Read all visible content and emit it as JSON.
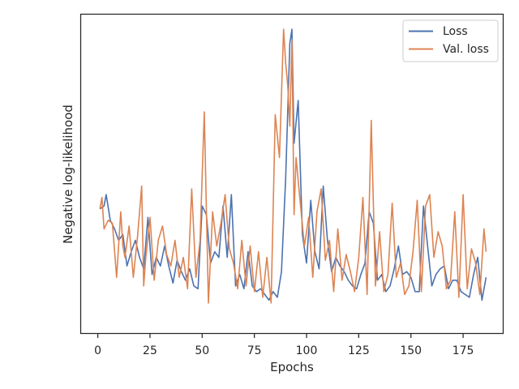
{
  "chart_data": {
    "type": "line",
    "xlabel": "Epochs",
    "ylabel": "Negative log-likelihood",
    "xlim": [
      -8,
      194
    ],
    "ylim": [
      0,
      100
    ],
    "xticks": [
      0,
      25,
      50,
      75,
      100,
      125,
      150,
      175
    ],
    "y_tick_labels_shown": false,
    "grid": false,
    "legend_position": "top-right",
    "colors": {
      "loss": "#4c72b0",
      "val_loss": "#dd8452",
      "axes": "#262626"
    },
    "series": [
      {
        "name": "Loss",
        "key": "loss",
        "x": [
          1,
          3,
          4,
          6,
          8,
          10,
          12,
          14,
          16,
          18,
          20,
          22,
          24,
          26,
          28,
          30,
          32,
          34,
          36,
          38,
          40,
          42,
          44,
          46,
          48,
          50,
          52,
          54,
          56,
          58,
          60,
          62,
          64,
          66,
          68,
          70,
          72,
          74,
          76,
          78,
          80,
          82,
          84,
          86,
          88,
          90,
          91,
          92,
          93,
          94,
          96,
          98,
          100,
          102,
          104,
          106,
          108,
          110,
          112,
          114,
          116,
          118,
          120,
          122,
          124,
          126,
          128,
          130,
          132,
          134,
          136,
          138,
          140,
          142,
          144,
          146,
          148,
          150,
          152,
          154,
          156,
          158,
          160,
          162,
          164,
          166,
          168,
          170,
          172,
          174,
          176,
          178,
          180,
          182,
          184,
          186
        ],
        "values": [
          37,
          38,
          42,
          33,
          30,
          26,
          28,
          17,
          22,
          26,
          20,
          16,
          34,
          14,
          20,
          17,
          24,
          17,
          11,
          19,
          15,
          12,
          16,
          10,
          9,
          38,
          35,
          18,
          22,
          20,
          38,
          20,
          42,
          10,
          14,
          9,
          22,
          10,
          8,
          9,
          7,
          5,
          8,
          6,
          15,
          48,
          72,
          95,
          100,
          60,
          75,
          28,
          18,
          40,
          22,
          16,
          45,
          26,
          15,
          20,
          17,
          15,
          12,
          10,
          9,
          14,
          18,
          36,
          32,
          12,
          14,
          8,
          10,
          16,
          24,
          14,
          15,
          13,
          8,
          8,
          38,
          24,
          10,
          14,
          16,
          17,
          9,
          12,
          12,
          8,
          7,
          6,
          14,
          20,
          5,
          13
        ]
      },
      {
        "name": "Val. loss",
        "key": "val_loss",
        "x": [
          1,
          2,
          3,
          5,
          7,
          9,
          11,
          12,
          13,
          15,
          17,
          19,
          21,
          22,
          23,
          25,
          27,
          29,
          31,
          33,
          35,
          37,
          39,
          41,
          43,
          45,
          47,
          49,
          51,
          53,
          55,
          57,
          59,
          61,
          63,
          65,
          67,
          69,
          71,
          73,
          75,
          77,
          79,
          81,
          83,
          85,
          87,
          89,
          90,
          91,
          92,
          93,
          94,
          95,
          97,
          99,
          101,
          103,
          105,
          107,
          109,
          111,
          113,
          115,
          117,
          119,
          121,
          123,
          125,
          127,
          129,
          131,
          133,
          135,
          137,
          139,
          141,
          143,
          145,
          147,
          149,
          151,
          153,
          155,
          157,
          159,
          161,
          163,
          165,
          167,
          169,
          171,
          173,
          175,
          177,
          179,
          181,
          183,
          185,
          186
        ],
        "values": [
          37,
          41,
          30,
          33,
          32,
          13,
          36,
          24,
          20,
          31,
          13,
          27,
          45,
          10,
          20,
          34,
          12,
          26,
          31,
          21,
          17,
          26,
          13,
          20,
          9,
          44,
          13,
          26,
          71,
          4,
          36,
          24,
          32,
          42,
          23,
          18,
          9,
          26,
          10,
          24,
          8,
          22,
          6,
          20,
          4,
          70,
          55,
          100,
          88,
          80,
          66,
          96,
          35,
          55,
          39,
          24,
          34,
          13,
          36,
          44,
          19,
          26,
          8,
          30,
          12,
          21,
          15,
          8,
          20,
          41,
          7,
          68,
          10,
          29,
          8,
          14,
          39,
          13,
          18,
          7,
          10,
          22,
          40,
          8,
          38,
          42,
          20,
          29,
          24,
          9,
          12,
          36,
          6,
          42,
          9,
          23,
          18,
          7,
          30,
          22
        ]
      }
    ]
  }
}
